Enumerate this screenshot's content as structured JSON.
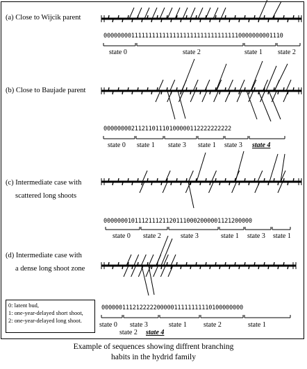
{
  "panels": [
    {
      "id": "a",
      "label_lines": [
        "(a) Close to Wijcik parent"
      ],
      "sequence": "0000000011111111111111111111111111111110000000001110",
      "states": [
        {
          "text": "state 0",
          "highlight": false
        },
        {
          "text": "state 2",
          "highlight": false
        },
        {
          "text": "state 1",
          "highlight": false
        },
        {
          "text": "state 2",
          "highlight": false
        }
      ]
    },
    {
      "id": "b",
      "label_lines": [
        "(b) Close to Baujade parent"
      ],
      "sequence": "0000000021121101110100000112222222222",
      "states": [
        {
          "text": "state 0",
          "highlight": false
        },
        {
          "text": "state 1",
          "highlight": false
        },
        {
          "text": "state 3",
          "highlight": false
        },
        {
          "text": "state 1",
          "highlight": false
        },
        {
          "text": "state 3",
          "highlight": false
        },
        {
          "text": "state 4",
          "highlight": true
        }
      ]
    },
    {
      "id": "c",
      "label_lines": [
        "(c) Intermediate case with",
        "scattered long shoots"
      ],
      "sequence": "0000000101112111211201110002000001121200000",
      "states": [
        {
          "text": "state 0",
          "highlight": false
        },
        {
          "text": "state 2",
          "highlight": false
        },
        {
          "text": "state 3",
          "highlight": false
        },
        {
          "text": "state 1",
          "highlight": false
        },
        {
          "text": "state 3",
          "highlight": false
        },
        {
          "text": "state 1",
          "highlight": false
        }
      ]
    },
    {
      "id": "d",
      "label_lines": [
        "(d) Intermediate case with",
        "a dense long shoot zone"
      ],
      "sequence": "00000011121222220000011111111110100000000",
      "states": [
        {
          "text": "state 0",
          "highlight": false
        },
        {
          "text": "state 3",
          "highlight": false
        },
        {
          "text": "state 1",
          "highlight": false
        },
        {
          "text": "state 2",
          "highlight": false
        },
        {
          "text": "state 1",
          "highlight": false
        },
        {
          "text": "state 2",
          "highlight": false
        },
        {
          "text": "state 4",
          "highlight": true
        }
      ]
    }
  ],
  "legend": [
    "0: latent bud,",
    "1: one-year-delayed short shoot,",
    "2: one-year-delayed long shoot."
  ],
  "caption_lines": [
    "Example of sequences showing diffrent branching",
    "habits in the hydrid family"
  ]
}
